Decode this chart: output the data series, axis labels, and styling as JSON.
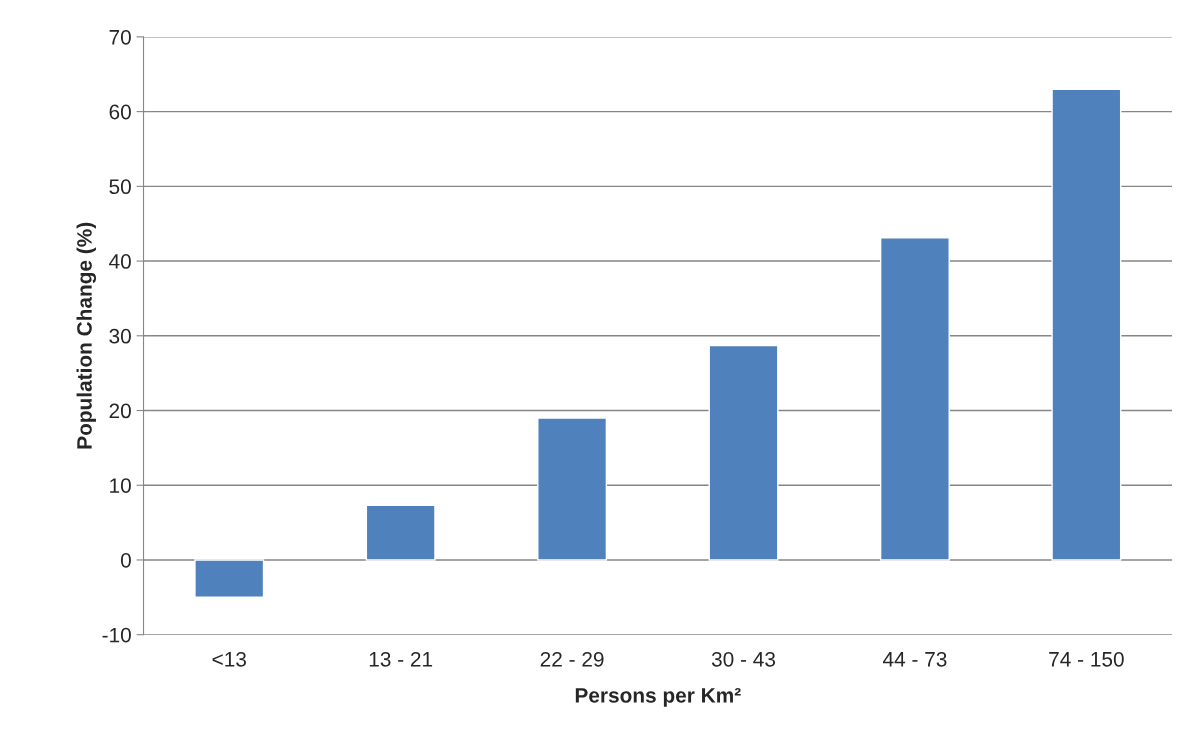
{
  "chart_data": {
    "type": "bar",
    "xlabel": "Persons per Km²",
    "ylabel": "Population Change (%)",
    "categories": [
      "<13",
      "13 - 21",
      "22 - 29",
      "30 - 43",
      "44 - 73",
      "74 - 150"
    ],
    "values": [
      -5.0,
      7.3,
      19.0,
      28.7,
      43.1,
      63.0
    ],
    "color": "#4f81bd",
    "ylim": [
      -10,
      70
    ],
    "yticks": [
      -10,
      0,
      10,
      20,
      30,
      40,
      50,
      60,
      70
    ],
    "grid": "y",
    "legend": false
  }
}
